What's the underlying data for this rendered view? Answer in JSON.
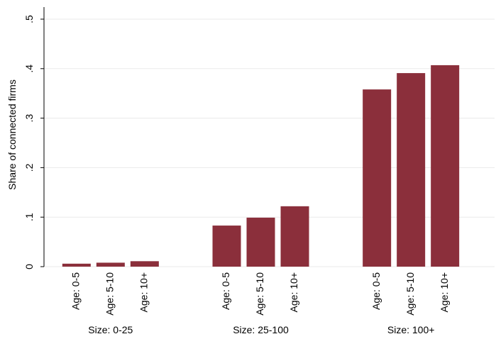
{
  "chart_data": {
    "type": "grouped-bar",
    "ylabel": "Share of connected firms",
    "groups": [
      {
        "name": "Size: 0-25",
        "categories": [
          "Age: 0-5",
          "Age: 5-10",
          "Age: 10+"
        ],
        "values": [
          0.006,
          0.008,
          0.011
        ]
      },
      {
        "name": "Size: 25-100",
        "categories": [
          "Age: 0-5",
          "Age: 5-10",
          "Age: 10+"
        ],
        "values": [
          0.083,
          0.099,
          0.122
        ]
      },
      {
        "name": "Size: 100+",
        "categories": [
          "Age: 0-5",
          "Age: 5-10",
          "Age: 10+"
        ],
        "values": [
          0.358,
          0.391,
          0.407
        ]
      }
    ],
    "color": "#8b2f3b",
    "ylim": [
      0,
      0.5
    ],
    "yticks": [
      0,
      {
        "value": 0.1,
        "label": ".1"
      },
      {
        "value": 0.2,
        "label": ".2"
      },
      {
        "value": 0.3,
        "label": ".3"
      },
      {
        "value": 0.4,
        "label": ".4"
      },
      {
        "value": 0.5,
        "label": ".5"
      }
    ],
    "grid": true
  }
}
